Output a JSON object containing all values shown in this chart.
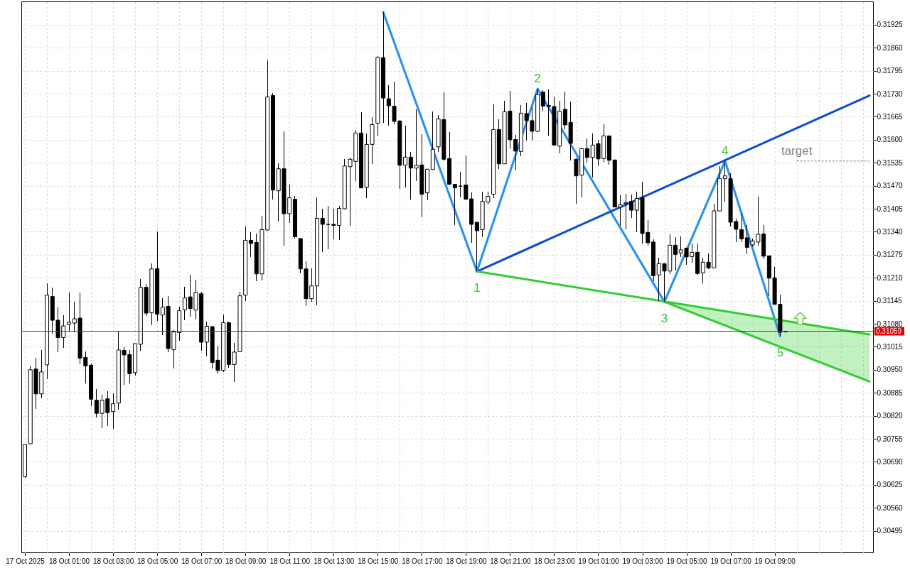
{
  "chart_data": {
    "type": "candlestick",
    "x": [
      "2025-10-17T23:00",
      "2025-10-17T23:15",
      "2025-10-17T23:30",
      "2025-10-17T23:45",
      "2025-10-18T00:00",
      "2025-10-18T00:15",
      "2025-10-18T00:30",
      "2025-10-18T00:45",
      "2025-10-18T01:00",
      "2025-10-18T01:15",
      "2025-10-18T01:30",
      "2025-10-18T01:45",
      "2025-10-18T02:00",
      "2025-10-18T02:15",
      "2025-10-18T02:30",
      "2025-10-18T02:45",
      "2025-10-18T03:00",
      "2025-10-18T03:15",
      "2025-10-18T03:30",
      "2025-10-18T03:45",
      "2025-10-18T04:00",
      "2025-10-18T04:15",
      "2025-10-18T04:30",
      "2025-10-18T04:45",
      "2025-10-18T05:00",
      "2025-10-18T05:15",
      "2025-10-18T05:30",
      "2025-10-18T05:45",
      "2025-10-18T06:00",
      "2025-10-18T06:15",
      "2025-10-18T06:30",
      "2025-10-18T06:45",
      "2025-10-18T07:00",
      "2025-10-18T07:15",
      "2025-10-18T07:30",
      "2025-10-18T07:45",
      "2025-10-18T08:00",
      "2025-10-18T08:15",
      "2025-10-18T08:30",
      "2025-10-18T08:45",
      "2025-10-18T09:00",
      "2025-10-18T09:15",
      "2025-10-18T09:30",
      "2025-10-18T09:45",
      "2025-10-18T10:00",
      "2025-10-18T10:15",
      "2025-10-18T10:30",
      "2025-10-18T10:45",
      "2025-10-18T11:00",
      "2025-10-18T11:15",
      "2025-10-18T11:30",
      "2025-10-18T11:45",
      "2025-10-18T12:00",
      "2025-10-18T12:15",
      "2025-10-18T12:30",
      "2025-10-18T12:45",
      "2025-10-18T13:00",
      "2025-10-18T13:15",
      "2025-10-18T13:30",
      "2025-10-18T13:45",
      "2025-10-18T14:00",
      "2025-10-18T14:15",
      "2025-10-18T14:30",
      "2025-10-18T14:45",
      "2025-10-18T15:00",
      "2025-10-18T15:15",
      "2025-10-18T15:30",
      "2025-10-18T15:45",
      "2025-10-18T16:00",
      "2025-10-18T16:15",
      "2025-10-18T16:30",
      "2025-10-18T16:45",
      "2025-10-18T17:00",
      "2025-10-18T17:15",
      "2025-10-18T17:30",
      "2025-10-18T17:45",
      "2025-10-18T18:00",
      "2025-10-18T18:15",
      "2025-10-18T18:30",
      "2025-10-18T18:45",
      "2025-10-18T19:00",
      "2025-10-18T19:15",
      "2025-10-18T19:30",
      "2025-10-18T19:45",
      "2025-10-18T20:00",
      "2025-10-18T20:15",
      "2025-10-18T20:30",
      "2025-10-18T20:45",
      "2025-10-18T21:00",
      "2025-10-18T21:15",
      "2025-10-18T21:30",
      "2025-10-18T21:45",
      "2025-10-18T22:00",
      "2025-10-18T22:15",
      "2025-10-18T22:30",
      "2025-10-18T22:45",
      "2025-10-18T23:00",
      "2025-10-18T23:15",
      "2025-10-18T23:30",
      "2025-10-18T23:45",
      "2025-10-19T00:00",
      "2025-10-19T00:15",
      "2025-10-19T00:30",
      "2025-10-19T00:45",
      "2025-10-19T01:00",
      "2025-10-19T01:15",
      "2025-10-19T01:30",
      "2025-10-19T01:45",
      "2025-10-19T02:00",
      "2025-10-19T02:15",
      "2025-10-19T02:30",
      "2025-10-19T02:45",
      "2025-10-19T03:00",
      "2025-10-19T03:15",
      "2025-10-19T03:30",
      "2025-10-19T03:45",
      "2025-10-19T04:00",
      "2025-10-19T04:15",
      "2025-10-19T04:30",
      "2025-10-19T04:45",
      "2025-10-19T05:00",
      "2025-10-19T05:15",
      "2025-10-19T05:30",
      "2025-10-19T05:45",
      "2025-10-19T06:00",
      "2025-10-19T06:15",
      "2025-10-19T06:30",
      "2025-10-19T06:45",
      "2025-10-19T07:00",
      "2025-10-19T07:15",
      "2025-10-19T07:30",
      "2025-10-19T07:45",
      "2025-10-19T08:00",
      "2025-10-19T08:15",
      "2025-10-19T08:30",
      "2025-10-19T08:45",
      "2025-10-19T09:00",
      "2025-10-19T09:15",
      "2025-10-19T09:30"
    ],
    "ohlc": [
      [
        0.30648,
        0.30739,
        0.30645,
        0.30739
      ],
      [
        0.30741,
        0.30962,
        0.30741,
        0.3095
      ],
      [
        0.30952,
        0.30983,
        0.30839,
        0.30882
      ],
      [
        0.30882,
        0.31006,
        0.30869,
        0.30944
      ],
      [
        0.30964,
        0.31195,
        0.30923,
        0.31161
      ],
      [
        0.31157,
        0.31183,
        0.31052,
        0.3109
      ],
      [
        0.3109,
        0.31127,
        0.30999,
        0.31041
      ],
      [
        0.31041,
        0.31105,
        0.31011,
        0.31074
      ],
      [
        0.31078,
        0.31169,
        0.31061,
        0.31084
      ],
      [
        0.31082,
        0.31142,
        0.31056,
        0.31094
      ],
      [
        0.31096,
        0.31169,
        0.30965,
        0.30983
      ],
      [
        0.30985,
        0.31002,
        0.30911,
        0.30961
      ],
      [
        0.30963,
        0.30967,
        0.30847,
        0.30867
      ],
      [
        0.30864,
        0.30896,
        0.30815,
        0.30827
      ],
      [
        0.30827,
        0.3088,
        0.30785,
        0.30864
      ],
      [
        0.30868,
        0.3089,
        0.30792,
        0.30829
      ],
      [
        0.30832,
        0.30884,
        0.30783,
        0.30854
      ],
      [
        0.30856,
        0.31059,
        0.30837,
        0.31006
      ],
      [
        0.31005,
        0.31013,
        0.30907,
        0.30992
      ],
      [
        0.30993,
        0.31005,
        0.30911,
        0.30939
      ],
      [
        0.30942,
        0.31024,
        0.30934,
        0.31024
      ],
      [
        0.31022,
        0.31207,
        0.31003,
        0.31183
      ],
      [
        0.31183,
        0.31193,
        0.31102,
        0.3111
      ],
      [
        0.31111,
        0.3125,
        0.31076,
        0.31235
      ],
      [
        0.31236,
        0.31341,
        0.31088,
        0.31107
      ],
      [
        0.31105,
        0.31152,
        0.31048,
        0.31127
      ],
      [
        0.31129,
        0.31159,
        0.31,
        0.3101
      ],
      [
        0.31007,
        0.31062,
        0.30954,
        0.31057
      ],
      [
        0.31055,
        0.31129,
        0.31032,
        0.31117
      ],
      [
        0.31119,
        0.31184,
        0.3109,
        0.31153
      ],
      [
        0.31156,
        0.31218,
        0.311,
        0.31123
      ],
      [
        0.31119,
        0.31204,
        0.31095,
        0.31169
      ],
      [
        0.31165,
        0.3117,
        0.31004,
        0.31028
      ],
      [
        0.31028,
        0.31086,
        0.30988,
        0.31073
      ],
      [
        0.31072,
        0.31075,
        0.30953,
        0.30971
      ],
      [
        0.30977,
        0.31017,
        0.3094,
        0.30948
      ],
      [
        0.30948,
        0.31107,
        0.30943,
        0.31083
      ],
      [
        0.31083,
        0.31087,
        0.30956,
        0.30965
      ],
      [
        0.30965,
        0.31026,
        0.30915,
        0.31
      ],
      [
        0.31001,
        0.3117,
        0.31001,
        0.31159
      ],
      [
        0.31161,
        0.31354,
        0.31145,
        0.31316
      ],
      [
        0.31316,
        0.31338,
        0.31268,
        0.31307
      ],
      [
        0.3131,
        0.31335,
        0.31201,
        0.31221
      ],
      [
        0.31221,
        0.31386,
        0.31202,
        0.31346
      ],
      [
        0.31345,
        0.31825,
        0.31343,
        0.31721
      ],
      [
        0.31725,
        0.31732,
        0.31432,
        0.31458
      ],
      [
        0.31456,
        0.31533,
        0.31369,
        0.31518
      ],
      [
        0.31518,
        0.31623,
        0.31301,
        0.31391
      ],
      [
        0.31391,
        0.31473,
        0.31364,
        0.31436
      ],
      [
        0.31432,
        0.31441,
        0.31321,
        0.31326
      ],
      [
        0.31321,
        0.31321,
        0.31222,
        0.31235
      ],
      [
        0.31235,
        0.31256,
        0.31131,
        0.31151
      ],
      [
        0.31151,
        0.31236,
        0.31142,
        0.31187
      ],
      [
        0.31187,
        0.31437,
        0.31133,
        0.31378
      ],
      [
        0.31378,
        0.31405,
        0.31282,
        0.31361
      ],
      [
        0.31361,
        0.31413,
        0.31291,
        0.31361
      ],
      [
        0.31361,
        0.31405,
        0.31319,
        0.31358
      ],
      [
        0.31358,
        0.31413,
        0.31317,
        0.31406
      ],
      [
        0.31405,
        0.31545,
        0.31404,
        0.31526
      ],
      [
        0.31524,
        0.31549,
        0.31357,
        0.31545
      ],
      [
        0.31539,
        0.31627,
        0.31483,
        0.31619
      ],
      [
        0.31619,
        0.31678,
        0.31464,
        0.31464
      ],
      [
        0.31466,
        0.31618,
        0.31436,
        0.31587
      ],
      [
        0.31587,
        0.31664,
        0.31532,
        0.31643
      ],
      [
        0.31647,
        0.31836,
        0.3161,
        0.31833
      ],
      [
        0.31832,
        0.31961,
        0.31647,
        0.31718
      ],
      [
        0.31716,
        0.31754,
        0.3164,
        0.31696
      ],
      [
        0.31695,
        0.31764,
        0.31644,
        0.31652
      ],
      [
        0.31653,
        0.31655,
        0.31462,
        0.31528
      ],
      [
        0.31528,
        0.31639,
        0.31466,
        0.31551
      ],
      [
        0.31551,
        0.31565,
        0.31432,
        0.3152
      ],
      [
        0.3152,
        0.31686,
        0.31484,
        0.31528
      ],
      [
        0.31529,
        0.31615,
        0.31381,
        0.31446
      ],
      [
        0.3145,
        0.31517,
        0.3143,
        0.31517
      ],
      [
        0.31516,
        0.3168,
        0.31516,
        0.31573
      ],
      [
        0.3158,
        0.3167,
        0.31565,
        0.31659
      ],
      [
        0.31657,
        0.31734,
        0.31542,
        0.31545
      ],
      [
        0.31547,
        0.31621,
        0.31474,
        0.31474
      ],
      [
        0.31474,
        0.31474,
        0.31359,
        0.31464
      ],
      [
        0.31469,
        0.31509,
        0.31438,
        0.31469
      ],
      [
        0.31472,
        0.31555,
        0.31432,
        0.31432
      ],
      [
        0.31433,
        0.31451,
        0.31309,
        0.31361
      ],
      [
        0.31367,
        0.31367,
        0.31228,
        0.31343
      ],
      [
        0.31346,
        0.31453,
        0.31324,
        0.31426
      ],
      [
        0.31424,
        0.31453,
        0.31418,
        0.3144
      ],
      [
        0.31446,
        0.317,
        0.31436,
        0.31629
      ],
      [
        0.31629,
        0.31657,
        0.31517,
        0.31532
      ],
      [
        0.31532,
        0.3171,
        0.31532,
        0.31679
      ],
      [
        0.31681,
        0.31739,
        0.31576,
        0.316
      ],
      [
        0.31601,
        0.31613,
        0.31513,
        0.31568
      ],
      [
        0.31567,
        0.31699,
        0.31553,
        0.31675
      ],
      [
        0.31674,
        0.31705,
        0.31597,
        0.31654
      ],
      [
        0.31654,
        0.31694,
        0.31597,
        0.31624
      ],
      [
        0.31624,
        0.31744,
        0.31621,
        0.31728
      ],
      [
        0.31735,
        0.3174,
        0.31679,
        0.31695
      ],
      [
        0.31697,
        0.31742,
        0.31612,
        0.31694
      ],
      [
        0.31694,
        0.31722,
        0.31585,
        0.31585
      ],
      [
        0.31582,
        0.31711,
        0.31562,
        0.31681
      ],
      [
        0.31686,
        0.31737,
        0.3163,
        0.31642
      ],
      [
        0.31649,
        0.31709,
        0.31542,
        0.3159
      ],
      [
        0.31545,
        0.3155,
        0.3142,
        0.31498
      ],
      [
        0.315,
        0.31577,
        0.31438,
        0.31575
      ],
      [
        0.31575,
        0.31604,
        0.31535,
        0.3155
      ],
      [
        0.3155,
        0.31617,
        0.31493,
        0.31585
      ],
      [
        0.31589,
        0.316,
        0.31526,
        0.31546
      ],
      [
        0.31547,
        0.31644,
        0.31538,
        0.31611
      ],
      [
        0.31611,
        0.31611,
        0.3153,
        0.31542
      ],
      [
        0.31543,
        0.31543,
        0.3141,
        0.3141
      ],
      [
        0.3141,
        0.31443,
        0.31356,
        0.31416
      ],
      [
        0.3142,
        0.31448,
        0.31347,
        0.31423
      ],
      [
        0.31426,
        0.31446,
        0.31379,
        0.31401
      ],
      [
        0.31401,
        0.31453,
        0.31339,
        0.31434
      ],
      [
        0.31436,
        0.31481,
        0.31306,
        0.31335
      ],
      [
        0.31338,
        0.31373,
        0.313,
        0.31309
      ],
      [
        0.31311,
        0.31318,
        0.312,
        0.31216
      ],
      [
        0.31218,
        0.31267,
        0.31145,
        0.3125
      ],
      [
        0.3125,
        0.3125,
        0.31142,
        0.31229
      ],
      [
        0.31229,
        0.31333,
        0.3122,
        0.31302
      ],
      [
        0.31302,
        0.31325,
        0.31231,
        0.31276
      ],
      [
        0.3128,
        0.31326,
        0.31269,
        0.31289
      ],
      [
        0.31294,
        0.31294,
        0.31247,
        0.31269
      ],
      [
        0.3127,
        0.31306,
        0.31252,
        0.31282
      ],
      [
        0.31282,
        0.31306,
        0.31218,
        0.31222
      ],
      [
        0.31224,
        0.31267,
        0.31195,
        0.31254
      ],
      [
        0.31254,
        0.31279,
        0.31234,
        0.31238
      ],
      [
        0.31238,
        0.31419,
        0.31238,
        0.31399
      ],
      [
        0.31399,
        0.31526,
        0.31399,
        0.31491
      ],
      [
        0.3149,
        0.3154,
        0.31426,
        0.31498
      ],
      [
        0.3149,
        0.31506,
        0.31354,
        0.31367
      ],
      [
        0.31369,
        0.31377,
        0.31311,
        0.31347
      ],
      [
        0.31346,
        0.31393,
        0.3131,
        0.3132
      ],
      [
        0.31323,
        0.31359,
        0.31276,
        0.31296
      ],
      [
        0.31303,
        0.3132,
        0.31298,
        0.31314
      ],
      [
        0.31311,
        0.3144,
        0.313,
        0.31333
      ],
      [
        0.31334,
        0.31358,
        0.31262,
        0.31271
      ],
      [
        0.31272,
        0.31272,
        0.31159,
        0.31209
      ],
      [
        0.3121,
        0.3124,
        0.31135,
        0.31135
      ],
      [
        0.31135,
        0.31163,
        0.31045,
        0.31056
      ],
      [
        0.31057,
        0.3106,
        0.31056,
        0.31059
      ]
    ],
    "xlim": [
      "2025-10-17T23:00",
      "2025-10-19T13:18"
    ],
    "ylim": [
      0.30434,
      0.31991
    ],
    "xticks": [
      {
        "value": "2025-10-17T23:00",
        "label": "17 Oct 2025"
      },
      {
        "value": "2025-10-18T00:00",
        "label": null
      },
      {
        "value": "2025-10-18T01:00",
        "label": "18 Oct 01:00"
      },
      {
        "value": "2025-10-18T02:00",
        "label": null
      },
      {
        "value": "2025-10-18T03:00",
        "label": "18 Oct 03:00"
      },
      {
        "value": "2025-10-18T04:00",
        "label": null
      },
      {
        "value": "2025-10-18T05:00",
        "label": "18 Oct 05:00"
      },
      {
        "value": "2025-10-18T06:00",
        "label": null
      },
      {
        "value": "2025-10-18T07:00",
        "label": "18 Oct 07:00"
      },
      {
        "value": "2025-10-18T08:00",
        "label": null
      },
      {
        "value": "2025-10-18T09:00",
        "label": "18 Oct 09:00"
      },
      {
        "value": "2025-10-18T10:00",
        "label": null
      },
      {
        "value": "2025-10-18T11:00",
        "label": "18 Oct 11:00"
      },
      {
        "value": "2025-10-18T12:00",
        "label": null
      },
      {
        "value": "2025-10-18T13:00",
        "label": "18 Oct 13:00"
      },
      {
        "value": "2025-10-18T14:00",
        "label": null
      },
      {
        "value": "2025-10-18T15:00",
        "label": "18 Oct 15:00"
      },
      {
        "value": "2025-10-18T16:00",
        "label": null
      },
      {
        "value": "2025-10-18T17:00",
        "label": "18 Oct 17:00"
      },
      {
        "value": "2025-10-18T18:00",
        "label": null
      },
      {
        "value": "2025-10-18T19:00",
        "label": "18 Oct 19:00"
      },
      {
        "value": "2025-10-18T20:00",
        "label": null
      },
      {
        "value": "2025-10-18T21:00",
        "label": "18 Oct 21:00"
      },
      {
        "value": "2025-10-18T22:00",
        "label": null
      },
      {
        "value": "2025-10-18T23:00",
        "label": "18 Oct 23:00"
      },
      {
        "value": "2025-10-19T00:00",
        "label": null
      },
      {
        "value": "2025-10-19T01:00",
        "label": "19 Oct 01:00"
      },
      {
        "value": "2025-10-19T02:00",
        "label": null
      },
      {
        "value": "2025-10-19T03:00",
        "label": "19 Oct 03:00"
      },
      {
        "value": "2025-10-19T04:00",
        "label": null
      },
      {
        "value": "2025-10-19T05:00",
        "label": "19 Oct 05:00"
      },
      {
        "value": "2025-10-19T06:00",
        "label": null
      },
      {
        "value": "2025-10-19T07:00",
        "label": "19 Oct 07:00"
      },
      {
        "value": "2025-10-19T08:00",
        "label": null
      },
      {
        "value": "2025-10-19T09:00",
        "label": "19 Oct 09:00"
      },
      {
        "value": "2025-10-19T10:00",
        "label": null
      },
      {
        "value": "2025-10-19T11:00",
        "label": null
      },
      {
        "value": "2025-10-19T12:00",
        "label": null
      },
      {
        "value": "2025-10-19T13:00",
        "label": null
      }
    ],
    "yticks": [
      0.30495,
      {
        "value": 0.3056,
        "label": "0.30560"
      },
      0.30625,
      {
        "value": 0.3069,
        "label": "0.30690"
      },
      0.30755,
      {
        "value": 0.3082,
        "label": "0.30820"
      },
      0.30885,
      {
        "value": 0.3095,
        "label": "0.30950"
      },
      0.31015,
      {
        "value": 0.3108,
        "label": "0.31080"
      },
      0.31145,
      {
        "value": 0.3121,
        "label": "0.31210"
      },
      0.31275,
      {
        "value": 0.3134,
        "label": "0.31340"
      },
      0.31405,
      {
        "value": 0.3147,
        "label": "0.31470"
      },
      0.31535,
      {
        "value": 0.316,
        "label": "0.31600"
      },
      0.31665,
      {
        "value": 0.3173,
        "label": "0.31730"
      },
      0.31795,
      {
        "value": 0.3186,
        "label": "0.31860"
      },
      0.31925
    ],
    "grid": true,
    "series": [
      {
        "type": "line",
        "color": "#1e90ff",
        "x": [
          "2025-10-18T15:15",
          "2025-10-18T19:30",
          "2025-10-18T22:15",
          "2025-10-19T04:00",
          "2025-10-19T06:45",
          "2025-10-19T09:15"
        ],
        "values": [
          0.31961,
          0.31228,
          0.31744,
          0.31142,
          0.3154,
          0.31045
        ]
      },
      {
        "type": "line",
        "color": "#0a4bd8",
        "x": [
          "2025-10-18T19:30",
          "2025-10-19T13:18"
        ],
        "values": [
          0.31228,
          0.31725
        ]
      },
      {
        "type": "line",
        "color": "#32cd32",
        "x": [
          "2025-10-18T19:30",
          "2025-10-19T13:18"
        ],
        "values": [
          0.31228,
          0.3105
        ]
      },
      {
        "type": "line",
        "color": "#32cd32",
        "x": [
          "2025-10-19T04:00",
          "2025-10-19T13:18"
        ],
        "values": [
          0.31142,
          0.30917
        ],
        "lower": [
          0.31142,
          0.30917
        ],
        "upper": [
          0.31142,
          0.3105
        ]
      },
      {
        "type": "line",
        "color": "#808080",
        "line_style": "dashed",
        "x": [
          "2025-10-19T10:00",
          "2025-10-19T13:18"
        ],
        "values": [
          0.3154,
          0.3154
        ]
      }
    ],
    "ref_lines": [
      {
        "axis": "y",
        "value": 0.31059,
        "label": "0.31059",
        "color": "#e00000"
      }
    ],
    "annotations": [
      {
        "text": "1",
        "x": "2025-10-18T19:30",
        "y": 0.31228
      },
      {
        "text": "2",
        "x": "2025-10-18T22:15",
        "y": 0.31744
      },
      {
        "text": "3",
        "x": "2025-10-19T04:00",
        "y": 0.31142
      },
      {
        "text": "4",
        "x": "2025-10-19T06:45",
        "y": 0.3154
      },
      {
        "text": "5",
        "x": "2025-10-19T09:15",
        "y": 0.31045
      },
      {
        "text": "target",
        "x": "2025-10-19T10:00",
        "y": 0.3154
      }
    ]
  }
}
